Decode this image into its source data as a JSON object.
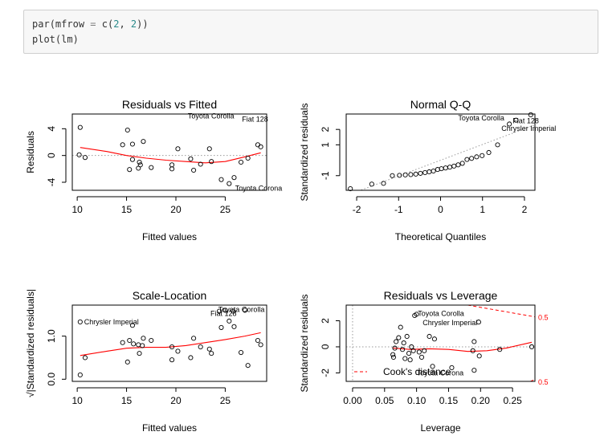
{
  "code": {
    "lines": [
      [
        {
          "t": "par",
          "c": "#333333"
        },
        {
          "t": "(",
          "c": "#333333"
        },
        {
          "t": "mfrow",
          "c": "#333333"
        },
        {
          "t": " = ",
          "c": "#7f7f7f"
        },
        {
          "t": "c",
          "c": "#333333"
        },
        {
          "t": "(",
          "c": "#333333"
        },
        {
          "t": "2",
          "c": "#2a8a8a"
        },
        {
          "t": ", ",
          "c": "#333333"
        },
        {
          "t": "2",
          "c": "#2a8a8a"
        },
        {
          "t": "))",
          "c": "#333333"
        }
      ],
      [
        {
          "t": "plot",
          "c": "#333333"
        },
        {
          "t": "(",
          "c": "#333333"
        },
        {
          "t": "lm",
          "c": "#333333"
        },
        {
          "t": ")",
          "c": "#333333"
        }
      ]
    ]
  },
  "colors": {
    "smoother": "#ff0000",
    "guide": "#9a9a9a",
    "points": "#000000",
    "cook": "#ff0000"
  },
  "chart_data": [
    {
      "type": "scatter",
      "title": "Residuals vs Fitted",
      "xlabel": "Fitted values",
      "ylabel": "Residuals",
      "xlim": [
        9.5,
        29.2
      ],
      "ylim": [
        -5.2,
        6.2
      ],
      "xticks": [
        10,
        15,
        20,
        25
      ],
      "yticks": [
        -4,
        0,
        4
      ],
      "points": [
        [
          10.3,
          4.2
        ],
        [
          10.2,
          0.1
        ],
        [
          10.8,
          -0.3
        ],
        [
          14.6,
          1.6
        ],
        [
          15.1,
          3.8
        ],
        [
          15.3,
          -2.1
        ],
        [
          15.6,
          -0.6
        ],
        [
          15.6,
          1.7
        ],
        [
          16.2,
          -1.9
        ],
        [
          16.3,
          -1.0
        ],
        [
          16.4,
          -1.4
        ],
        [
          16.7,
          2.1
        ],
        [
          17.5,
          -1.8
        ],
        [
          19.6,
          -1.4
        ],
        [
          19.6,
          -2.0
        ],
        [
          20.2,
          1.0
        ],
        [
          21.5,
          -0.5
        ],
        [
          21.8,
          -2.2
        ],
        [
          22.5,
          -1.3
        ],
        [
          23.4,
          1.0
        ],
        [
          23.6,
          -0.9
        ],
        [
          24.6,
          -3.6
        ],
        [
          25.4,
          -4.2
        ],
        [
          25.9,
          -3.3
        ],
        [
          26.6,
          -1.0
        ],
        [
          27.3,
          -0.4
        ],
        [
          28.3,
          1.6
        ],
        [
          28.6,
          1.3
        ]
      ],
      "smooth": [
        [
          10.3,
          1.2
        ],
        [
          13,
          0.6
        ],
        [
          15,
          0.0
        ],
        [
          17,
          -0.4
        ],
        [
          19,
          -0.7
        ],
        [
          21,
          -0.9
        ],
        [
          23,
          -1.1
        ],
        [
          25,
          -0.9
        ],
        [
          27,
          -0.2
        ],
        [
          28.6,
          0.4
        ]
      ],
      "guides": [
        {
          "y": 0,
          "style": "dotted"
        }
      ],
      "labels": [
        {
          "text": "Toyota Corolla",
          "x": 25.9,
          "y": 5.9,
          "ha": "end"
        },
        {
          "text": "Fiat 128",
          "x": 26.7,
          "y": 5.4,
          "ha": "start"
        },
        {
          "text": "Toyota Corona",
          "x": 26.0,
          "y": -4.9,
          "ha": "start"
        }
      ]
    },
    {
      "type": "scatter",
      "title": "Normal Q-Q",
      "xlabel": "Theoretical Quantiles",
      "ylabel": "Standardized residuals",
      "xlim": [
        -2.25,
        2.25
      ],
      "ylim": [
        -1.95,
        3.0
      ],
      "xticks": [
        -2,
        -1,
        0,
        1,
        2
      ],
      "yticks": [
        -1,
        1,
        2
      ],
      "ytick_labels": [
        "-1",
        "1",
        "2"
      ],
      "points": [
        [
          -2.15,
          -1.85
        ],
        [
          -1.64,
          -1.55
        ],
        [
          -1.36,
          -1.5
        ],
        [
          -1.15,
          -1.0
        ],
        [
          -0.98,
          -0.98
        ],
        [
          -0.84,
          -0.95
        ],
        [
          -0.71,
          -0.93
        ],
        [
          -0.59,
          -0.9
        ],
        [
          -0.48,
          -0.85
        ],
        [
          -0.37,
          -0.8
        ],
        [
          -0.27,
          -0.75
        ],
        [
          -0.17,
          -0.7
        ],
        [
          -0.07,
          -0.6
        ],
        [
          0.02,
          -0.55
        ],
        [
          0.12,
          -0.5
        ],
        [
          0.22,
          -0.45
        ],
        [
          0.32,
          -0.38
        ],
        [
          0.42,
          -0.3
        ],
        [
          0.52,
          -0.2
        ],
        [
          0.63,
          0.05
        ],
        [
          0.74,
          0.12
        ],
        [
          0.86,
          0.22
        ],
        [
          0.99,
          0.3
        ],
        [
          1.15,
          0.5
        ],
        [
          1.36,
          1.0
        ],
        [
          1.64,
          2.35
        ],
        [
          1.8,
          2.6
        ],
        [
          2.15,
          2.95
        ]
      ],
      "line": [
        [
          -2.25,
          -2.3
        ],
        [
          2.25,
          2.3
        ]
      ],
      "labels": [
        {
          "text": "Toyota Corolla",
          "x": 1.52,
          "y": 2.75,
          "ha": "end"
        },
        {
          "text": "Fiat 128",
          "x": 1.72,
          "y": 2.55,
          "ha": "start"
        },
        {
          "text": "Chrysler Imperial",
          "x": 1.45,
          "y": 2.05,
          "ha": "start"
        }
      ]
    },
    {
      "type": "scatter",
      "title": "Scale-Location",
      "xlabel": "Fitted values",
      "ylabel": "√|Standardized residuals|",
      "xlim": [
        9.5,
        29.2
      ],
      "ylim": [
        -0.05,
        1.72
      ],
      "xticks": [
        10,
        15,
        20,
        25
      ],
      "yticks": [
        0.0,
        1.0
      ],
      "ytick_labels": [
        "0.0",
        "1.0"
      ],
      "points": [
        [
          10.3,
          0.1
        ],
        [
          10.8,
          0.5
        ],
        [
          14.6,
          0.85
        ],
        [
          15.1,
          0.4
        ],
        [
          15.3,
          0.9
        ],
        [
          15.6,
          1.25
        ],
        [
          15.7,
          0.82
        ],
        [
          16.2,
          0.8
        ],
        [
          16.3,
          0.6
        ],
        [
          16.6,
          0.78
        ],
        [
          16.7,
          0.95
        ],
        [
          17.5,
          0.9
        ],
        [
          19.6,
          0.75
        ],
        [
          19.6,
          0.45
        ],
        [
          20.2,
          0.65
        ],
        [
          21.5,
          0.5
        ],
        [
          21.8,
          0.95
        ],
        [
          22.5,
          0.75
        ],
        [
          23.4,
          0.7
        ],
        [
          23.6,
          0.6
        ],
        [
          24.6,
          1.2
        ],
        [
          25.4,
          1.35
        ],
        [
          25.9,
          1.22
        ],
        [
          26.6,
          0.62
        ],
        [
          27.3,
          0.32
        ],
        [
          28.3,
          0.9
        ],
        [
          28.6,
          0.8
        ],
        [
          27.0,
          1.6
        ],
        [
          25.8,
          1.58
        ],
        [
          25.0,
          1.6
        ],
        [
          24.4,
          1.58
        ],
        [
          10.3,
          1.33
        ]
      ],
      "smooth": [
        [
          10.3,
          0.55
        ],
        [
          13,
          0.65
        ],
        [
          15,
          0.72
        ],
        [
          17,
          0.74
        ],
        [
          19,
          0.74
        ],
        [
          21,
          0.78
        ],
        [
          23,
          0.85
        ],
        [
          25,
          0.92
        ],
        [
          27,
          1.0
        ],
        [
          28.6,
          1.08
        ]
      ],
      "labels": [
        {
          "text": "Chrysler Imperial",
          "x": 10.7,
          "y": 1.33,
          "ha": "start"
        },
        {
          "text": "Toyota Corolla",
          "x": 24.3,
          "y": 1.62,
          "ha": "start"
        },
        {
          "text": "Fiat 128",
          "x": 23.5,
          "y": 1.52,
          "ha": "start"
        }
      ]
    },
    {
      "type": "scatter",
      "title": "Residuals vs Leverage",
      "xlabel": "Leverage",
      "ylabel": "Standardized residuals",
      "xlim": [
        -0.01,
        0.285
      ],
      "ylim": [
        -2.65,
        3.2
      ],
      "xticks": [
        0.0,
        0.05,
        0.1,
        0.15,
        0.2,
        0.25
      ],
      "xtick_labels": [
        "0.00",
        "0.05",
        "0.10",
        "0.15",
        "0.20",
        "0.25"
      ],
      "yticks": [
        -2,
        0,
        2
      ],
      "points": [
        [
          0.063,
          -0.6
        ],
        [
          0.064,
          -0.8
        ],
        [
          0.066,
          -0.1
        ],
        [
          0.068,
          0.4
        ],
        [
          0.072,
          0.7
        ],
        [
          0.075,
          1.5
        ],
        [
          0.078,
          -0.2
        ],
        [
          0.08,
          0.3
        ],
        [
          0.082,
          -0.9
        ],
        [
          0.085,
          0.8
        ],
        [
          0.088,
          -0.5
        ],
        [
          0.09,
          -1.0
        ],
        [
          0.092,
          0.0
        ],
        [
          0.095,
          -0.3
        ],
        [
          0.097,
          2.4
        ],
        [
          0.1,
          2.5
        ],
        [
          0.104,
          -0.4
        ],
        [
          0.108,
          -0.8
        ],
        [
          0.112,
          -0.3
        ],
        [
          0.12,
          0.8
        ],
        [
          0.125,
          -1.5
        ],
        [
          0.128,
          0.6
        ],
        [
          0.155,
          -1.6
        ],
        [
          0.188,
          -0.3
        ],
        [
          0.19,
          0.4
        ],
        [
          0.198,
          -0.7
        ],
        [
          0.23,
          -0.2
        ],
        [
          0.28,
          0.0
        ],
        [
          0.19,
          -1.8
        ],
        [
          0.197,
          1.9
        ]
      ],
      "smooth": [
        [
          0.063,
          -0.1
        ],
        [
          0.09,
          -0.2
        ],
        [
          0.12,
          -0.15
        ],
        [
          0.15,
          -0.2
        ],
        [
          0.18,
          -0.35
        ],
        [
          0.21,
          -0.3
        ],
        [
          0.24,
          -0.1
        ],
        [
          0.28,
          0.35
        ]
      ],
      "guides": [
        {
          "y": 0,
          "style": "dotted"
        },
        {
          "x": 0,
          "style": "dotted"
        }
      ],
      "cook": {
        "upper": [
          [
            0.18,
            3.2
          ],
          [
            0.285,
            2.3
          ]
        ],
        "lower": [
          [
            0.278,
            -2.65
          ],
          [
            0.285,
            -2.5
          ]
        ],
        "label_upper": "0.5",
        "label_lower": "0.5"
      },
      "legend": {
        "text": "Cook's distance"
      },
      "labels": [
        {
          "text": "Toyota Corolla",
          "x": 0.102,
          "y": 2.55,
          "ha": "start"
        },
        {
          "text": "Chrysler Imperial",
          "x": 0.195,
          "y": 1.85,
          "ha": "end"
        },
        {
          "text": "Toyota Corona",
          "x": 0.1,
          "y": -2.0,
          "ha": "start"
        }
      ]
    }
  ]
}
